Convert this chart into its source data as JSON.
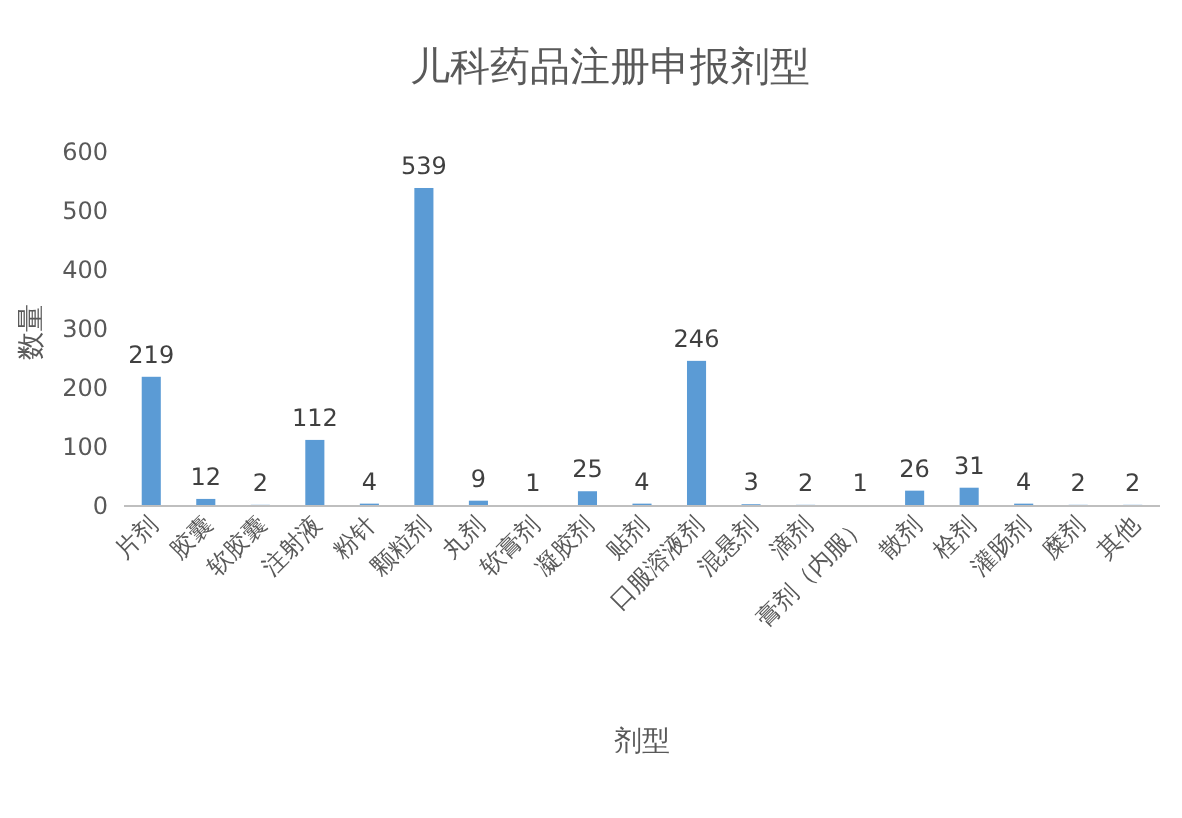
{
  "chart_data": {
    "type": "bar",
    "title": "儿科药品注册申报剂型",
    "xlabel": "剂型",
    "ylabel": "数量",
    "categories": [
      "片剂",
      "胶囊",
      "软胶囊",
      "注射液",
      "粉针",
      "颗粒剂",
      "丸剂",
      "软膏剂",
      "凝胶剂",
      "贴剂",
      "口服溶液剂",
      "混悬剂",
      "滴剂",
      "膏剂（内服）",
      "散剂",
      "栓剂",
      "灌肠剂",
      "糜剂",
      "其他"
    ],
    "values": [
      219,
      12,
      2,
      112,
      4,
      539,
      9,
      1,
      25,
      4,
      246,
      3,
      2,
      1,
      26,
      31,
      4,
      2,
      2
    ],
    "color": "#5b9bd5",
    "ylim": [
      0,
      600
    ],
    "yticks": [
      0,
      100,
      200,
      300,
      400,
      500,
      600
    ],
    "data_labels": true,
    "grid": false
  }
}
